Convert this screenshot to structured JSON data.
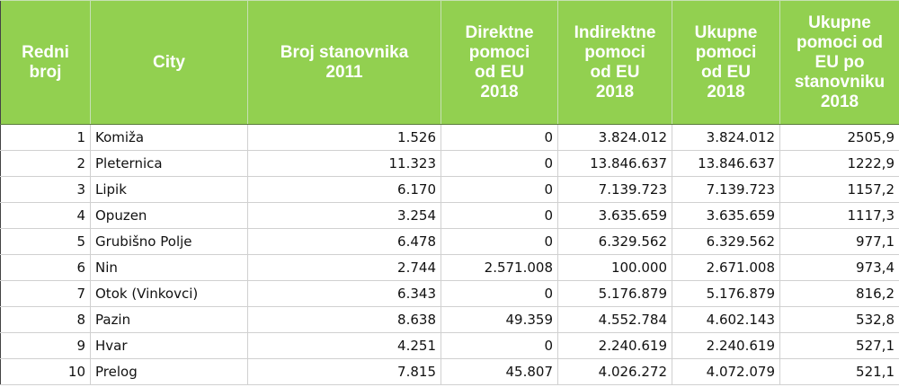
{
  "headers": [
    "Redni\nbroj",
    "City",
    "Broj stanovnika\n2011",
    "Direktne\npomoci\nod EU\n2018",
    "Indirektne\npomoci\nod EU\n2018",
    "Ukupne\npomoci\nod EU\n2018",
    "Ukupne\npomoci od\nEU po\nstanovniku\n2018"
  ],
  "rows": [
    {
      "rb": "1",
      "city": "Komiža",
      "pop": "1.526",
      "direct": "0",
      "indirect": "3.824.012",
      "total": "3.824.012",
      "per_capita": "2505,9"
    },
    {
      "rb": "2",
      "city": "Pleternica",
      "pop": "11.323",
      "direct": "0",
      "indirect": "13.846.637",
      "total": "13.846.637",
      "per_capita": "1222,9"
    },
    {
      "rb": "3",
      "city": "Lipik",
      "pop": "6.170",
      "direct": "0",
      "indirect": "7.139.723",
      "total": "7.139.723",
      "per_capita": "1157,2"
    },
    {
      "rb": "4",
      "city": "Opuzen",
      "pop": "3.254",
      "direct": "0",
      "indirect": "3.635.659",
      "total": "3.635.659",
      "per_capita": "1117,3"
    },
    {
      "rb": "5",
      "city": "Grubišno Polje",
      "pop": "6.478",
      "direct": "0",
      "indirect": "6.329.562",
      "total": "6.329.562",
      "per_capita": "977,1"
    },
    {
      "rb": "6",
      "city": "Nin",
      "pop": "2.744",
      "direct": "2.571.008",
      "indirect": "100.000",
      "total": "2.671.008",
      "per_capita": "973,4"
    },
    {
      "rb": "7",
      "city": "Otok (Vinkovci)",
      "pop": "6.343",
      "direct": "0",
      "indirect": "5.176.879",
      "total": "5.176.879",
      "per_capita": "816,2"
    },
    {
      "rb": "8",
      "city": "Pazin",
      "pop": "8.638",
      "direct": "49.359",
      "indirect": "4.552.784",
      "total": "4.602.143",
      "per_capita": "532,8"
    },
    {
      "rb": "9",
      "city": "Hvar",
      "pop": "4.251",
      "direct": "0",
      "indirect": "2.240.619",
      "total": "2.240.619",
      "per_capita": "527,1"
    },
    {
      "rb": "10",
      "city": "Prelog",
      "pop": "7.815",
      "direct": "45.807",
      "indirect": "4.026.272",
      "total": "4.072.079",
      "per_capita": "521,1"
    }
  ],
  "colors": {
    "header_bg": "#92d050",
    "header_text": "#ffffff"
  }
}
